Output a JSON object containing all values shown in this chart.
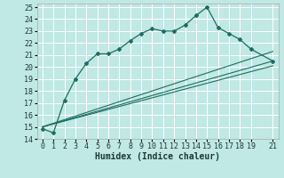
{
  "xlabel": "Humidex (Indice chaleur)",
  "bg_color": "#c0e8e4",
  "grid_color": "#b0ddd8",
  "line_color": "#1a6e64",
  "xlim": [
    -0.5,
    21.5
  ],
  "ylim": [
    14,
    25.3
  ],
  "xtick_vals": [
    0,
    1,
    2,
    3,
    4,
    5,
    6,
    7,
    8,
    9,
    10,
    11,
    12,
    13,
    14,
    15,
    16,
    17,
    18,
    19,
    21
  ],
  "ytick_vals": [
    14,
    15,
    16,
    17,
    18,
    19,
    20,
    21,
    22,
    23,
    24,
    25
  ],
  "zigzag_x": [
    0,
    1,
    2,
    3,
    4,
    5,
    6,
    7,
    8,
    9,
    10,
    11,
    12,
    13,
    14,
    15,
    16,
    17,
    18,
    19,
    21
  ],
  "zigzag_y": [
    14.85,
    14.5,
    17.2,
    19.0,
    20.3,
    21.1,
    21.1,
    21.5,
    22.2,
    22.8,
    23.2,
    23.0,
    23.0,
    23.5,
    24.3,
    25.0,
    23.3,
    22.8,
    22.3,
    21.5,
    20.5
  ],
  "linear_lines": [
    {
      "x": [
        0,
        21
      ],
      "y": [
        15.0,
        21.3
      ]
    },
    {
      "x": [
        0,
        21
      ],
      "y": [
        15.0,
        20.5
      ]
    },
    {
      "x": [
        0,
        21
      ],
      "y": [
        15.0,
        20.1
      ]
    }
  ],
  "tick_fontsize": 6,
  "xlabel_fontsize": 7
}
